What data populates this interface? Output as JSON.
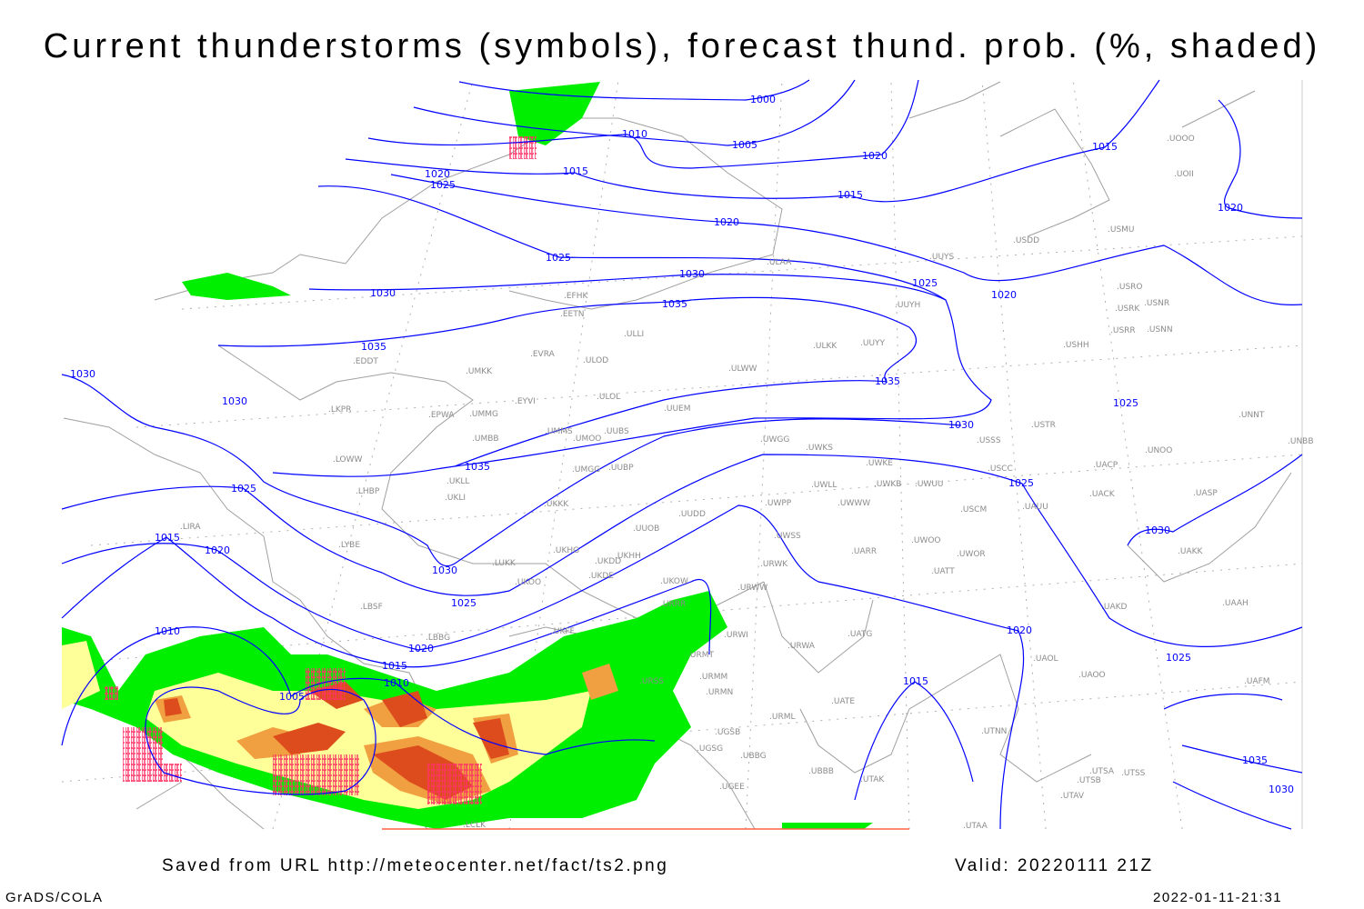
{
  "title": "Current thunderstorms (symbols), forecast thund. prob. (%, shaded)",
  "footer": {
    "source": "Saved from URL http://meteocenter.net/fact/ts2.png",
    "valid": "Valid: 20220111 21Z",
    "software": "GrADS/COLA",
    "timestamp": "2022-01-11-21:31"
  },
  "colors": {
    "isobar": "#0000ff",
    "coastline": "#a0a0a0",
    "prob_low": "#00ee00",
    "prob_mid": "#ffff99",
    "prob_high": "#f0a040",
    "prob_very_high": "#dd4c1c",
    "thunderstorm_symbol": "#ff3366",
    "station": "#8c8c8c"
  },
  "isobar_labels": [
    "1000",
    "1005",
    "1010",
    "1015",
    "1020",
    "1025",
    "1030",
    "1035",
    "1030",
    "1025",
    "1020",
    "1015",
    "1010",
    "1005",
    "1010",
    "1015",
    "1020",
    "1025",
    "1030",
    "1035",
    "1035",
    "1030",
    "1025",
    "1020",
    "1015",
    "1020",
    "1025",
    "1030",
    "1020",
    "1025",
    "1015",
    "1020",
    "1025",
    "1030",
    "1035",
    "1030",
    "1015",
    "1020",
    "1025",
    "1035",
    "1030"
  ],
  "stations": [
    "EDDT",
    "LKPR",
    "EPWA",
    "UMKK",
    "EYVI",
    "UMMG",
    "EVRA",
    "ULOD",
    "ULOL",
    "UMMS",
    "UUBS",
    "UMOO",
    "UMBB",
    "UUEM",
    "ULWW",
    "ULLI",
    "EFHK",
    "EETN",
    "ULAA",
    "ULKK",
    "UUYY",
    "UUYH",
    "UUYS",
    "USDD",
    "USMU",
    "USRO",
    "USRK",
    "USNR",
    "USRR",
    "USNN",
    "USHH",
    "USTR",
    "USSS",
    "USCC",
    "UACP",
    "UNOO",
    "UACK",
    "UASP",
    "UAUU",
    "USCM",
    "UWKE",
    "UWKB",
    "UWUU",
    "UWGG",
    "UWKS",
    "UWLL",
    "UWWW",
    "UWPP",
    "UUDD",
    "UUOB",
    "UWSS",
    "UUBP",
    "UMGG",
    "UKLL",
    "UKLI",
    "UKKK",
    "LUKK",
    "UKHH",
    "UKDD",
    "UKDE",
    "UKOO",
    "UKHG",
    "LOWW",
    "LHBP",
    "LYBE",
    "LIRA",
    "LBSF",
    "LBBG",
    "UKFF",
    "UKOW",
    "URWW",
    "URWK",
    "URRR",
    "URWI",
    "URMT",
    "URMM",
    "URMN",
    "URSS",
    "UGSB",
    "UGSG",
    "UBBG",
    "UBBB",
    "UGEE",
    "URML",
    "UATG",
    "URWA",
    "UATT",
    "UWOO",
    "UWOR",
    "UARR",
    "UAKD",
    "UATE",
    "UTAK",
    "UTAA",
    "UTAV",
    "UTSB",
    "UTSA",
    "UTSS",
    "UTNN",
    "UAOO",
    "UAOL",
    "UAAH",
    "UAFM",
    "UNNT",
    "UNBB",
    "UAKK",
    "UOOO",
    "UOII",
    "LCLK"
  ]
}
